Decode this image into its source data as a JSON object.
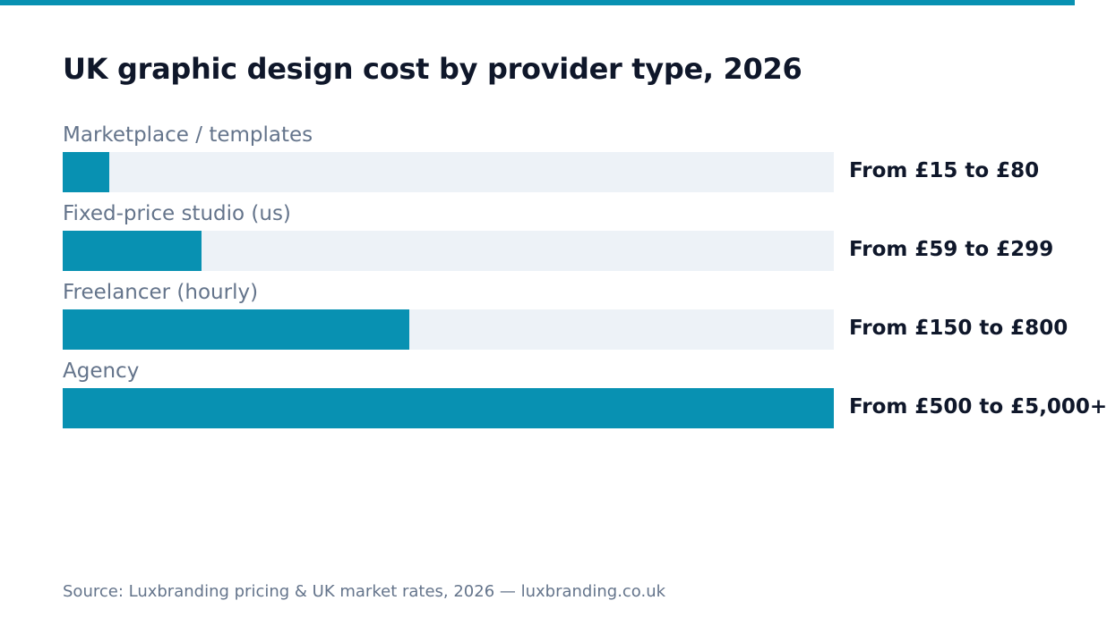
{
  "colors": {
    "accent": "#0891b2",
    "track": "#edf2f7",
    "title": "#0f172a",
    "muted": "#64748b"
  },
  "chart_data": {
    "type": "bar",
    "orientation": "horizontal",
    "title": "UK graphic design cost by provider type, 2026",
    "categories": [
      "Marketplace / templates",
      "Fixed-price studio (us)",
      "Freelancer (hourly)",
      "Agency"
    ],
    "value_labels": [
      "From £15 to £80",
      "From £59 to £299",
      "From £150 to £800",
      "From £500 to £5,000+"
    ],
    "values": [
      80,
      299,
      800,
      5000
    ],
    "relative_bar_lengths": [
      0.06,
      0.18,
      0.45,
      1.0
    ],
    "xlim": [
      0,
      1
    ],
    "grid": false,
    "legend": "none",
    "source": "Source: Luxbranding pricing & UK market rates, 2026 — luxbranding.co.uk"
  }
}
